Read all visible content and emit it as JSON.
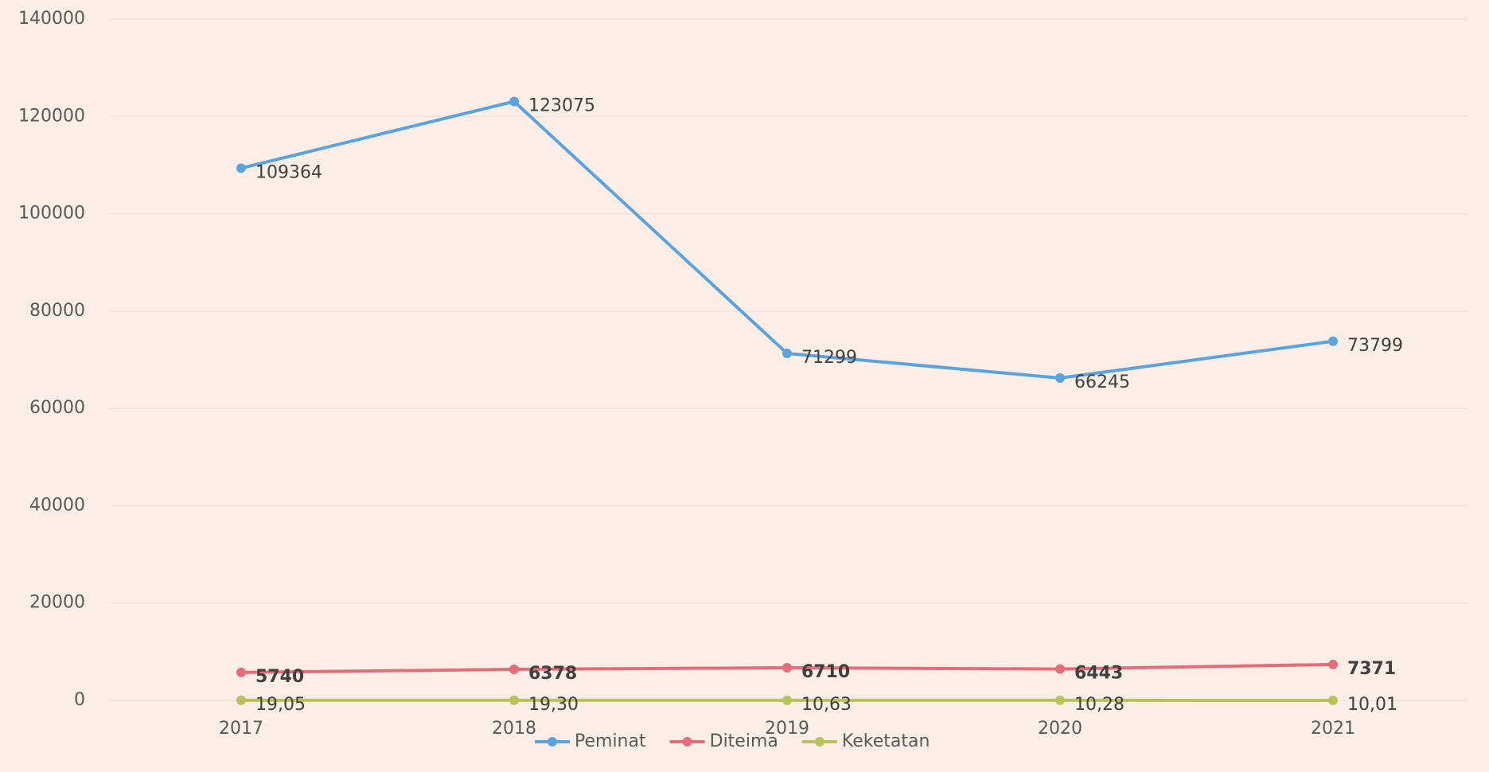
{
  "chart_data": {
    "type": "line",
    "categories": [
      "2017",
      "2018",
      "2019",
      "2020",
      "2021"
    ],
    "series": [
      {
        "name": "Peminat",
        "color": "#5ba3df",
        "values": [
          109364,
          123075,
          71299,
          66245,
          73799
        ]
      },
      {
        "name": "Diteima",
        "color": "#e46d78",
        "values": [
          5740,
          6378,
          6710,
          6443,
          7371
        ]
      },
      {
        "name": "Keketatan",
        "color": "#b9c35b",
        "values": [
          19.05,
          19.3,
          10.63,
          10.28,
          10.01
        ],
        "value_labels": [
          "19,05",
          "19,30",
          "10,63",
          "10,28",
          "10,01"
        ]
      }
    ],
    "ylim": [
      0,
      140000
    ],
    "yticks": [
      0,
      20000,
      40000,
      60000,
      80000,
      100000,
      120000,
      140000
    ],
    "grid": true,
    "legend": "bottom"
  }
}
